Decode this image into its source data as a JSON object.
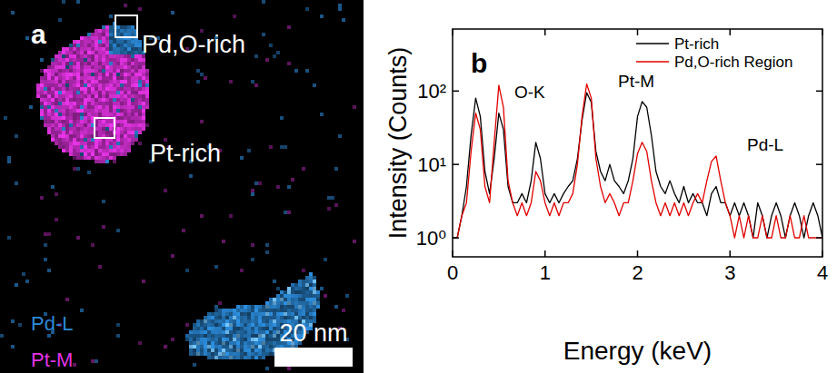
{
  "map_panel": {
    "panel_label": "a",
    "regions": [
      {
        "label": "Pd,O-rich"
      },
      {
        "label": "Pt-rich"
      }
    ],
    "channels": [
      {
        "label": "Pd-L",
        "color": "#2b8ad8"
      },
      {
        "label": "Pt-M",
        "color": "#e233e2"
      }
    ],
    "scale_bar": "20 nm"
  },
  "chart_data": {
    "type": "line",
    "panel_label": "b",
    "x_label": "Energy (keV)",
    "y_label": "Intensity (Counts)",
    "log": "y",
    "xlim": [
      0,
      4
    ],
    "xticks": [
      0,
      1,
      2,
      3,
      4
    ],
    "ylim": [
      0.55,
      700
    ],
    "yticks": [
      {
        "value": 1,
        "label": "10⁰"
      },
      {
        "value": 10,
        "label": "10¹"
      },
      {
        "value": 100,
        "label": "10²"
      }
    ],
    "legend": "upper right",
    "annotations": [
      {
        "text": "O-K"
      },
      {
        "text": "Pt-M"
      },
      {
        "text": "Pd-L"
      }
    ],
    "x": [
      0,
      0.05,
      0.1,
      0.15,
      0.2,
      0.25,
      0.3,
      0.35,
      0.4,
      0.45,
      0.5,
      0.55,
      0.6,
      0.65,
      0.7,
      0.75,
      0.8,
      0.85,
      0.9,
      0.95,
      1,
      1.05,
      1.1,
      1.15,
      1.2,
      1.25,
      1.3,
      1.35,
      1.4,
      1.45,
      1.5,
      1.55,
      1.6,
      1.65,
      1.7,
      1.75,
      1.8,
      1.85,
      1.9,
      1.95,
      2,
      2.05,
      2.1,
      2.15,
      2.2,
      2.25,
      2.3,
      2.35,
      2.4,
      2.45,
      2.5,
      2.55,
      2.6,
      2.65,
      2.7,
      2.75,
      2.8,
      2.85,
      2.9,
      2.95,
      3,
      3.05,
      3.1,
      3.15,
      3.2,
      3.25,
      3.3,
      3.35,
      3.4,
      3.45,
      3.5,
      3.55,
      3.6,
      3.65,
      3.7,
      3.75,
      3.8,
      3.85,
      3.9,
      3.95,
      4
    ],
    "series": [
      {
        "name": "Pt-rich",
        "color": "#000000",
        "values": [
          1,
          1,
          2,
          5,
          25,
          80,
          45,
          8,
          4,
          12,
          50,
          30,
          5,
          3,
          3,
          4,
          3,
          6,
          20,
          12,
          4,
          3,
          4,
          3,
          4,
          5,
          6,
          12,
          40,
          95,
          70,
          15,
          8,
          6,
          10,
          6,
          5,
          4,
          6,
          12,
          45,
          72,
          60,
          25,
          8,
          5,
          4,
          6,
          4,
          3,
          5,
          3,
          4,
          3,
          3,
          2,
          4,
          5,
          3,
          3,
          2,
          3,
          2,
          3,
          2,
          1,
          3,
          2,
          1,
          2,
          3,
          2,
          1,
          2,
          3,
          2,
          1,
          2,
          3,
          2,
          1
        ]
      },
      {
        "name": "Pd,O-rich Region",
        "color": "#e00000",
        "values": [
          1,
          1,
          2,
          3,
          15,
          50,
          30,
          5,
          3,
          20,
          120,
          60,
          6,
          3,
          2,
          3,
          2,
          3,
          8,
          6,
          3,
          2,
          3,
          2,
          3,
          3,
          4,
          10,
          45,
          125,
          80,
          12,
          5,
          3,
          4,
          3,
          2,
          3,
          3,
          6,
          14,
          20,
          15,
          6,
          3,
          2,
          3,
          2,
          3,
          2,
          3,
          2,
          3,
          4,
          3,
          6,
          11,
          13,
          6,
          3,
          2,
          1,
          2,
          1,
          2,
          1,
          1,
          2,
          1,
          1,
          2,
          1,
          1,
          2,
          1,
          1,
          2,
          1,
          1,
          1,
          1
        ]
      }
    ]
  }
}
